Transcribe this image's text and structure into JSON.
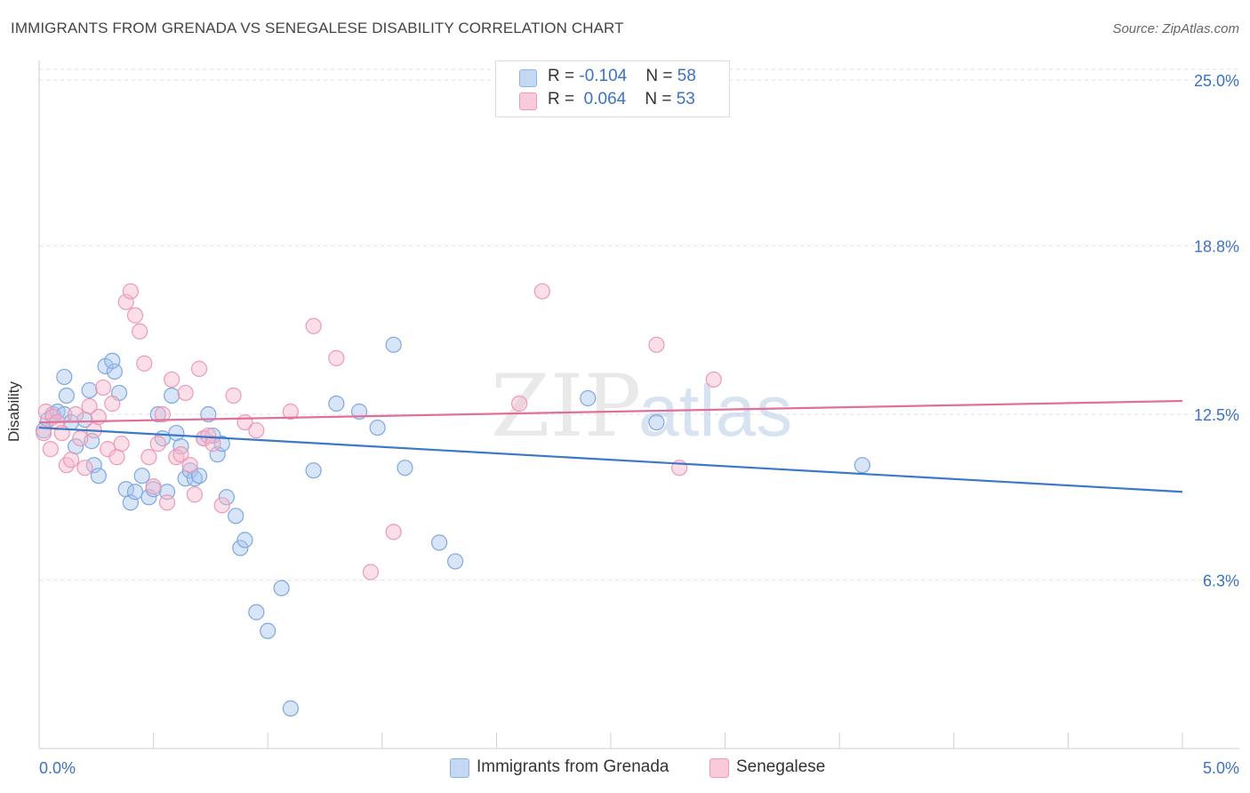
{
  "title": "IMMIGRANTS FROM GRENADA VS SENEGALESE DISABILITY CORRELATION CHART",
  "source": "Source: ZipAtlas.com",
  "watermark": {
    "zip": "ZIP",
    "atlas": "atlas"
  },
  "legend": [
    {
      "r_label": "R = ",
      "r_value": "-0.104",
      "n_label": "N = ",
      "n_value": "58"
    },
    {
      "r_label": "R = ",
      "r_value": " 0.064",
      "n_label": "N = ",
      "n_value": "53"
    }
  ],
  "chart_data": {
    "type": "scatter",
    "title": "IMMIGRANTS FROM GRENADA VS SENEGALESE DISABILITY CORRELATION CHART",
    "xlabel": "",
    "ylabel": "Disability",
    "xlim": [
      0,
      5
    ],
    "ylim": [
      0,
      25.6
    ],
    "x_tick_labels": [
      "0.0%",
      "5.0%"
    ],
    "y_ticks": [
      6.3,
      12.5,
      18.8,
      25.0
    ],
    "y_tick_labels": [
      "6.3%",
      "12.5%",
      "18.8%",
      "25.0%"
    ],
    "grid": "horizontal dashed",
    "legend_position": "top-center",
    "series": [
      {
        "name": "Immigrants from Grenada",
        "color": "#a9c6ee",
        "stroke": "#7da7e0",
        "line_color": "#3c78c8",
        "trend": [
          [
            0,
            12.0
          ],
          [
            5,
            9.6
          ]
        ],
        "points": [
          [
            0.02,
            11.9
          ],
          [
            0.04,
            12.3
          ],
          [
            0.06,
            12.5
          ],
          [
            0.08,
            12.6
          ],
          [
            0.11,
            12.5
          ],
          [
            0.12,
            13.2
          ],
          [
            0.14,
            12.2
          ],
          [
            0.11,
            13.9
          ],
          [
            0.16,
            11.3
          ],
          [
            0.2,
            12.3
          ],
          [
            0.23,
            11.5
          ],
          [
            0.24,
            10.6
          ],
          [
            0.26,
            10.2
          ],
          [
            0.22,
            13.4
          ],
          [
            0.29,
            14.3
          ],
          [
            0.33,
            14.1
          ],
          [
            0.35,
            13.3
          ],
          [
            0.32,
            14.5
          ],
          [
            0.38,
            9.7
          ],
          [
            0.4,
            9.2
          ],
          [
            0.42,
            9.6
          ],
          [
            0.45,
            10.2
          ],
          [
            0.48,
            9.4
          ],
          [
            0.5,
            9.7
          ],
          [
            0.52,
            12.5
          ],
          [
            0.54,
            11.6
          ],
          [
            0.56,
            9.6
          ],
          [
            0.58,
            13.2
          ],
          [
            0.6,
            11.8
          ],
          [
            0.62,
            11.3
          ],
          [
            0.64,
            10.1
          ],
          [
            0.66,
            10.4
          ],
          [
            0.68,
            10.1
          ],
          [
            0.7,
            10.2
          ],
          [
            0.72,
            11.6
          ],
          [
            0.74,
            12.5
          ],
          [
            0.76,
            11.7
          ],
          [
            0.78,
            11.0
          ],
          [
            0.8,
            11.4
          ],
          [
            0.82,
            9.4
          ],
          [
            0.86,
            8.7
          ],
          [
            0.88,
            7.5
          ],
          [
            0.9,
            7.8
          ],
          [
            0.95,
            5.1
          ],
          [
            1.0,
            4.4
          ],
          [
            1.06,
            6.0
          ],
          [
            1.1,
            1.5
          ],
          [
            1.2,
            10.4
          ],
          [
            1.3,
            12.9
          ],
          [
            1.4,
            12.6
          ],
          [
            1.48,
            12.0
          ],
          [
            1.55,
            15.1
          ],
          [
            1.6,
            10.5
          ],
          [
            1.75,
            7.7
          ],
          [
            1.82,
            7.0
          ],
          [
            2.4,
            13.1
          ],
          [
            2.7,
            12.2
          ],
          [
            3.6,
            10.6
          ]
        ]
      },
      {
        "name": "Senegalese",
        "color": "#f6b8cc",
        "stroke": "#ee98b4",
        "line_color": "#e07098",
        "trend": [
          [
            0,
            12.2
          ],
          [
            5,
            13.0
          ]
        ],
        "points": [
          [
            0.02,
            11.8
          ],
          [
            0.03,
            12.6
          ],
          [
            0.05,
            11.2
          ],
          [
            0.06,
            12.4
          ],
          [
            0.08,
            12.2
          ],
          [
            0.1,
            11.8
          ],
          [
            0.12,
            10.6
          ],
          [
            0.14,
            10.8
          ],
          [
            0.16,
            12.5
          ],
          [
            0.18,
            11.6
          ],
          [
            0.2,
            10.5
          ],
          [
            0.22,
            12.8
          ],
          [
            0.24,
            11.9
          ],
          [
            0.26,
            12.4
          ],
          [
            0.28,
            13.5
          ],
          [
            0.3,
            11.2
          ],
          [
            0.32,
            12.9
          ],
          [
            0.34,
            10.9
          ],
          [
            0.36,
            11.4
          ],
          [
            0.38,
            16.7
          ],
          [
            0.4,
            17.1
          ],
          [
            0.42,
            16.2
          ],
          [
            0.44,
            15.6
          ],
          [
            0.46,
            14.4
          ],
          [
            0.48,
            10.9
          ],
          [
            0.5,
            9.8
          ],
          [
            0.52,
            11.4
          ],
          [
            0.54,
            12.5
          ],
          [
            0.56,
            9.2
          ],
          [
            0.58,
            13.8
          ],
          [
            0.6,
            10.9
          ],
          [
            0.62,
            11.0
          ],
          [
            0.64,
            13.3
          ],
          [
            0.66,
            10.6
          ],
          [
            0.68,
            9.5
          ],
          [
            0.7,
            14.2
          ],
          [
            0.72,
            11.6
          ],
          [
            0.74,
            11.7
          ],
          [
            0.76,
            11.4
          ],
          [
            0.8,
            9.1
          ],
          [
            0.85,
            13.2
          ],
          [
            0.9,
            12.2
          ],
          [
            0.95,
            11.9
          ],
          [
            1.1,
            12.6
          ],
          [
            1.2,
            15.8
          ],
          [
            1.3,
            14.6
          ],
          [
            1.45,
            6.6
          ],
          [
            1.55,
            8.1
          ],
          [
            2.1,
            12.9
          ],
          [
            2.2,
            17.1
          ],
          [
            2.7,
            15.1
          ],
          [
            2.8,
            10.5
          ],
          [
            2.95,
            13.8
          ]
        ]
      }
    ]
  },
  "bottom_legend": [
    "Immigrants from Grenada",
    "Senegalese"
  ]
}
